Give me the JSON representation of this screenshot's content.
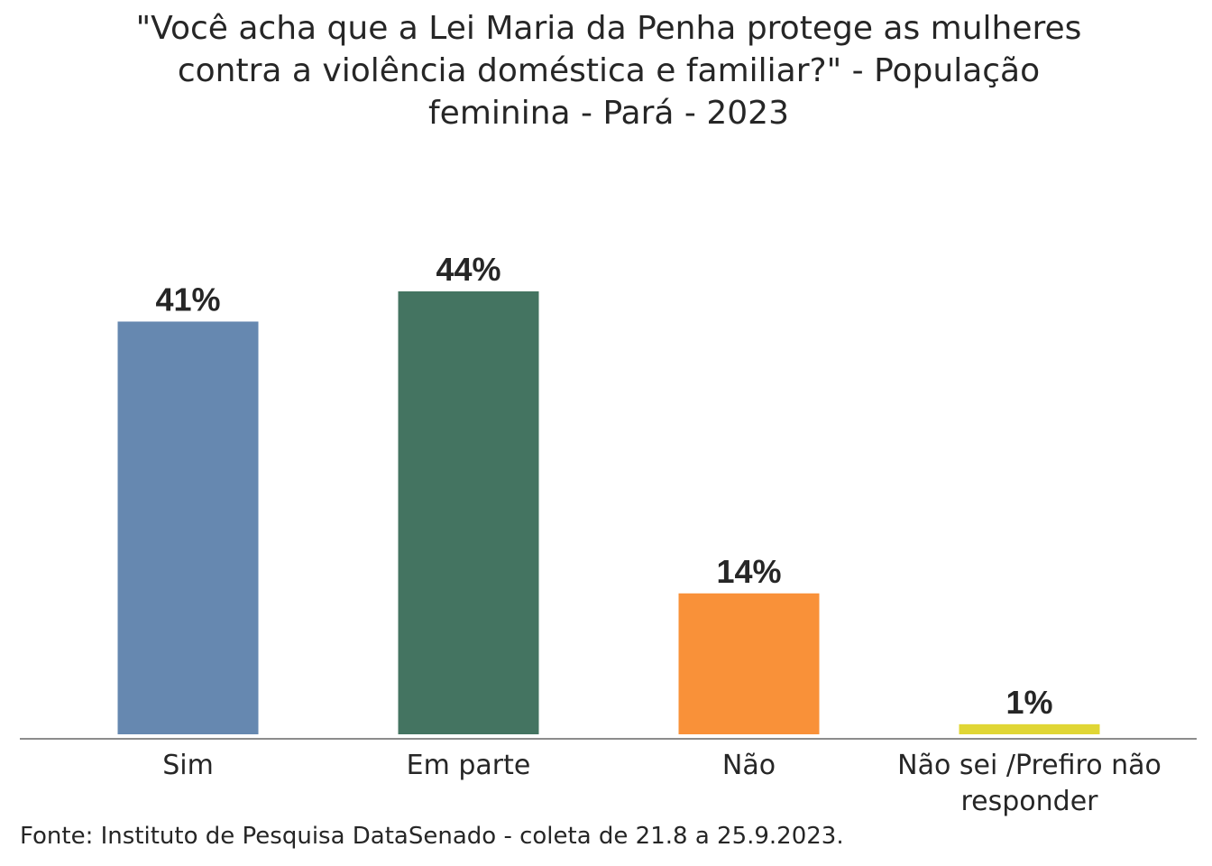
{
  "chart_data": {
    "type": "bar",
    "title_lines": [
      "\"Você acha que a Lei Maria da Penha protege as mulheres",
      "contra a violência doméstica e familiar?\" - População",
      "feminina - Pará - 2023"
    ],
    "categories": [
      "Sim",
      "Em parte",
      "Não",
      "Não sei /Prefiro não responder"
    ],
    "category_label_lines": [
      [
        "Sim"
      ],
      [
        "Em parte"
      ],
      [
        "Não"
      ],
      [
        "Não sei /Prefiro não",
        "responder"
      ]
    ],
    "values": [
      41,
      44,
      14,
      1
    ],
    "value_labels": [
      "41%",
      "44%",
      "14%",
      "1%"
    ],
    "colors": [
      "#6688b0",
      "#447461",
      "#f99139",
      "#e0d635"
    ],
    "ylim": [
      0,
      44
    ],
    "grid": false,
    "legend": "none",
    "xlabel": "",
    "ylabel": ""
  },
  "source": "Fonte: Instituto de Pesquisa DataSenado - coleta de 21.8 a 25.9.2023."
}
